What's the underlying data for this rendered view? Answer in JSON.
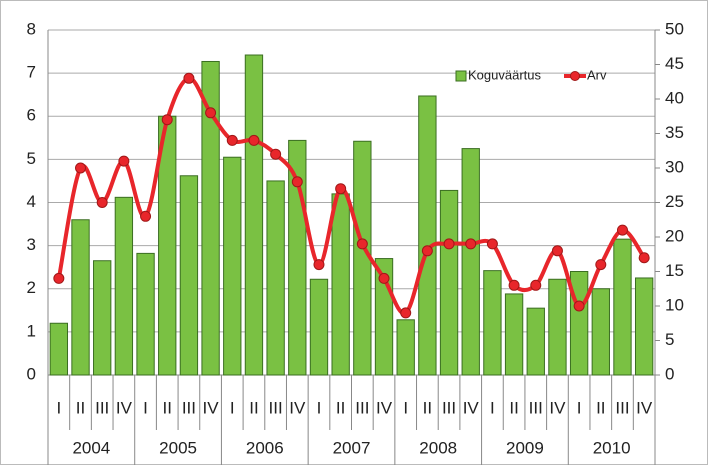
{
  "chart_data": {
    "type": "bar",
    "categories": [
      "I",
      "II",
      "III",
      "IV",
      "I",
      "II",
      "III",
      "IV",
      "I",
      "II",
      "III",
      "IV",
      "I",
      "II",
      "III",
      "IV",
      "I",
      "II",
      "III",
      "IV",
      "I",
      "II",
      "III",
      "IV",
      "I",
      "II",
      "III",
      "IV"
    ],
    "years": [
      "2004",
      "2005",
      "2006",
      "2007",
      "2008",
      "2009",
      "2010"
    ],
    "series": [
      {
        "name": "Koguväärtus",
        "type": "bar",
        "color": "#7ac143",
        "values": [
          1.2,
          3.6,
          2.65,
          4.12,
          2.82,
          6.0,
          4.62,
          7.27,
          5.05,
          7.42,
          4.5,
          5.44,
          2.22,
          4.2,
          5.42,
          2.7,
          1.28,
          6.47,
          4.28,
          5.25,
          2.42,
          1.88,
          1.55,
          2.22,
          2.4,
          2.0,
          3.15,
          2.25
        ]
      },
      {
        "name": "Arv",
        "type": "line",
        "axis": "y2",
        "color": "#e8262b",
        "values": [
          14,
          30,
          25,
          31,
          23,
          37,
          43,
          38,
          34,
          34,
          32,
          28,
          16,
          27,
          19,
          14,
          9,
          18,
          19,
          19,
          19,
          13,
          13,
          18,
          10,
          16,
          21,
          17
        ]
      }
    ],
    "ylim": [
      0,
      8
    ],
    "yticks": [
      0,
      1,
      2,
      3,
      4,
      5,
      6,
      7,
      8
    ],
    "y2lim": [
      0,
      50
    ],
    "y2ticks": [
      0,
      5,
      10,
      15,
      20,
      25,
      30,
      35,
      40,
      45,
      50
    ],
    "grid": true,
    "legend": "top-right"
  }
}
